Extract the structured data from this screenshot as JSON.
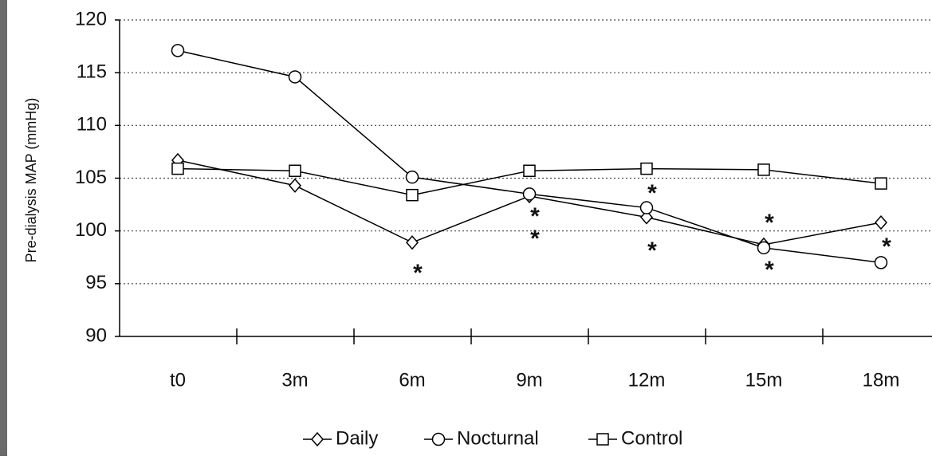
{
  "chart_data": {
    "type": "line",
    "y_label": "Pre-dialysis MAP (mmHg)",
    "categories": [
      "t0",
      "3m",
      "6m",
      "9m",
      "12m",
      "15m",
      "18m"
    ],
    "series": [
      {
        "name": "Daily",
        "marker": "diamond",
        "color": "#000000",
        "values": [
          106.7,
          104.3,
          98.9,
          103.3,
          101.3,
          98.7,
          100.8
        ]
      },
      {
        "name": "Nocturnal",
        "marker": "circle",
        "color": "#000000",
        "values": [
          117.1,
          114.6,
          105.1,
          103.5,
          102.2,
          98.4,
          97.0
        ]
      },
      {
        "name": "Control",
        "marker": "square",
        "color": "#000000",
        "values": [
          105.9,
          105.7,
          103.4,
          105.7,
          105.9,
          105.8,
          104.5
        ]
      }
    ],
    "annotations": [
      "*",
      "*",
      "*",
      "*",
      "*",
      "*",
      "*",
      "*"
    ],
    "ylim": [
      90,
      120
    ],
    "yticks": [
      90,
      95,
      100,
      105,
      110,
      115,
      120
    ],
    "grid": true
  }
}
